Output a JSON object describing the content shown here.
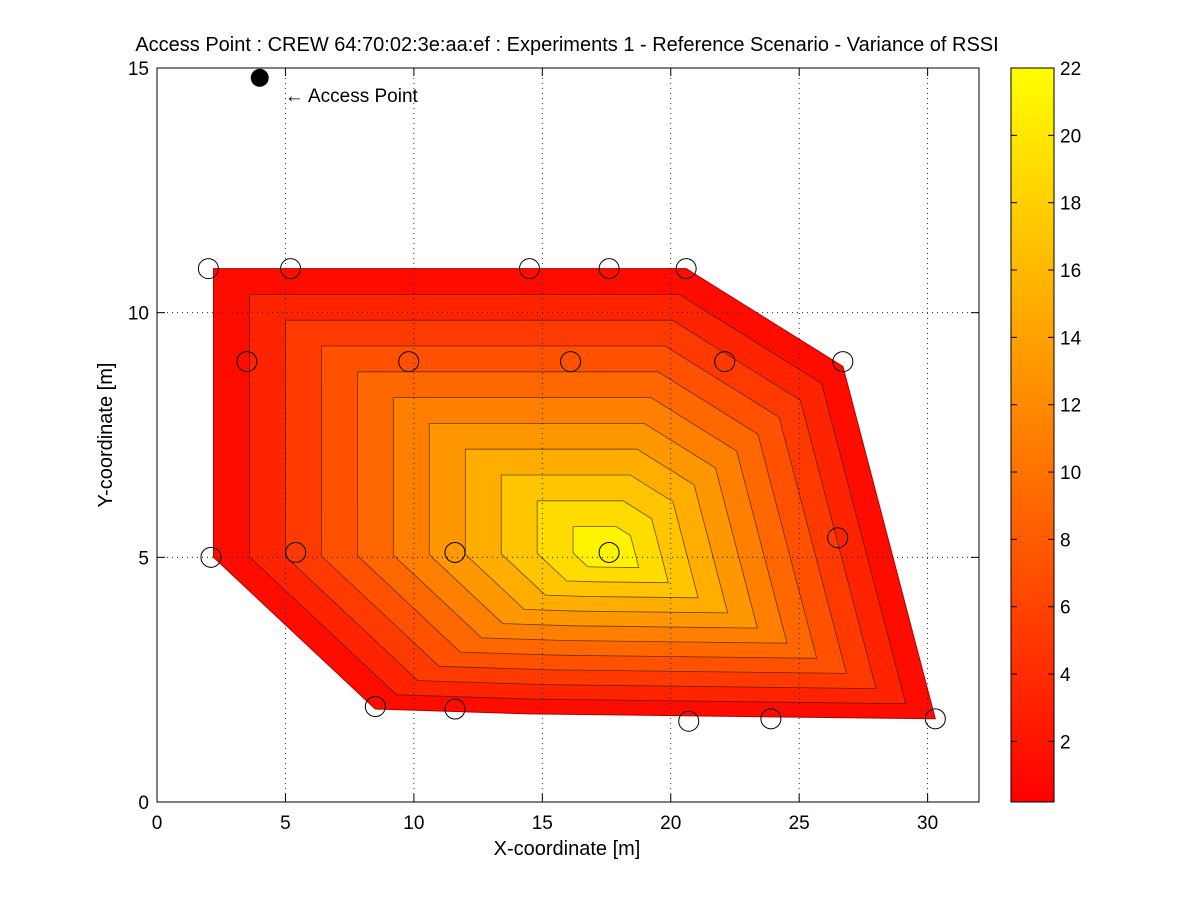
{
  "chart_data": {
    "type": "contour",
    "title": "Access Point : CREW 64:70:02:3e:aa:ef : Experiments 1 - Reference Scenario - Variance of RSSI",
    "xlabel": "X-coordinate [m]",
    "ylabel": "Y-coordinate [m]",
    "xlim": [
      0,
      32
    ],
    "ylim": [
      0,
      15
    ],
    "x_ticks": [
      "0",
      "5",
      "10",
      "15",
      "20",
      "25",
      "30"
    ],
    "y_ticks": [
      "0",
      "5",
      "10",
      "15"
    ],
    "grid": true,
    "colorbar": {
      "colormap": "autumn",
      "range": [
        0.2,
        22
      ],
      "ticks": [
        "2",
        "4",
        "6",
        "8",
        "10",
        "12",
        "14",
        "16",
        "18",
        "20",
        "22"
      ],
      "color_low": "#ff0000",
      "color_high": "#ffff00"
    },
    "access_point": {
      "x": 4,
      "y": 14.8,
      "label": "← Access Point"
    },
    "region_boundary": [
      [
        2.2,
        10.9
      ],
      [
        20.6,
        10.9
      ],
      [
        26.7,
        8.9
      ],
      [
        30.3,
        1.7
      ],
      [
        14.5,
        1.8
      ],
      [
        8.5,
        1.9
      ],
      [
        2.2,
        5.0
      ]
    ],
    "peak": {
      "x": 17.6,
      "y": 5.1,
      "value": 22
    },
    "measurement_points": [
      {
        "x": 2.0,
        "y": 10.9
      },
      {
        "x": 5.2,
        "y": 10.9
      },
      {
        "x": 14.5,
        "y": 10.9
      },
      {
        "x": 17.6,
        "y": 10.9
      },
      {
        "x": 20.6,
        "y": 10.9
      },
      {
        "x": 3.5,
        "y": 9.0
      },
      {
        "x": 9.8,
        "y": 9.0
      },
      {
        "x": 16.1,
        "y": 9.0
      },
      {
        "x": 22.1,
        "y": 9.0
      },
      {
        "x": 26.7,
        "y": 9.0
      },
      {
        "x": 2.1,
        "y": 5.0
      },
      {
        "x": 5.4,
        "y": 5.1
      },
      {
        "x": 11.6,
        "y": 5.1
      },
      {
        "x": 17.6,
        "y": 5.1
      },
      {
        "x": 26.5,
        "y": 5.4
      },
      {
        "x": 8.5,
        "y": 1.95
      },
      {
        "x": 11.6,
        "y": 1.9
      },
      {
        "x": 20.7,
        "y": 1.65
      },
      {
        "x": 23.9,
        "y": 1.7
      },
      {
        "x": 30.3,
        "y": 1.7
      }
    ]
  }
}
